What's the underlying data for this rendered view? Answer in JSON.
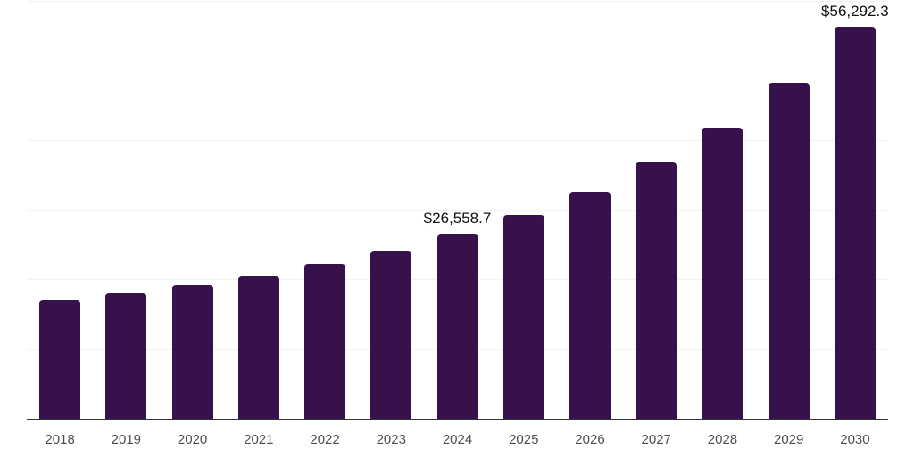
{
  "chart_data": {
    "type": "bar",
    "title": "",
    "xlabel": "",
    "ylabel": "",
    "categories": [
      "2018",
      "2019",
      "2020",
      "2021",
      "2022",
      "2023",
      "2024",
      "2025",
      "2026",
      "2027",
      "2028",
      "2029",
      "2030"
    ],
    "values": [
      17050,
      18080,
      19230,
      20510,
      22180,
      24100,
      26558.7,
      29230,
      32560,
      36800,
      41800,
      48200,
      56292.3
    ],
    "labeled_points": {
      "2024": "$26,558.7",
      "2030": "$56,292.3"
    },
    "ylim": [
      0,
      60000
    ],
    "gridline_values": [
      0,
      10000,
      20000,
      30000,
      40000,
      50000,
      60000
    ],
    "grid": true,
    "legend": "none",
    "colors": {
      "bar": "#36114B",
      "axis_line": "#333333",
      "gridline": "#f2f2f2",
      "tick_label": "#4d4d4d",
      "data_label": "#111111",
      "background": "#ffffff"
    }
  }
}
